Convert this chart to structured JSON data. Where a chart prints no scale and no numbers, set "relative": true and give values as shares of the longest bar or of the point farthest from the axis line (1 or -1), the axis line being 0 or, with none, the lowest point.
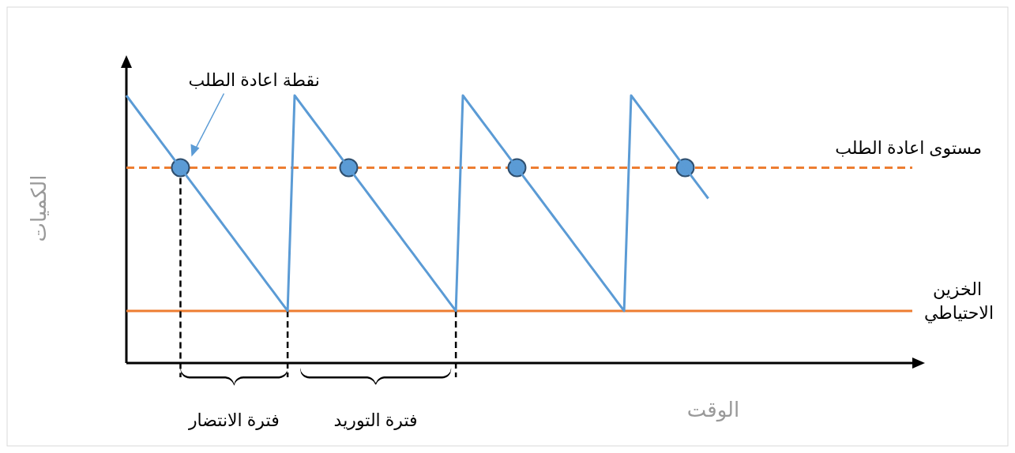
{
  "chart_data": {
    "type": "line",
    "relative": true,
    "xlabel": "الوقت",
    "ylabel": "الكميات",
    "marker": "none",
    "categories": [
      null,
      null,
      null,
      null,
      null,
      null,
      null,
      null,
      null,
      null,
      null,
      null,
      null,
      null,
      null,
      null,
      null,
      null,
      null,
      null,
      null,
      null,
      null,
      null,
      null,
      null,
      null,
      null,
      null,
      null,
      null,
      null,
      null,
      null,
      null,
      null,
      null,
      null,
      null,
      null,
      null,
      null,
      null,
      null,
      null,
      null,
      null,
      null,
      null,
      null,
      null,
      null,
      null,
      null,
      null,
      null,
      null,
      null,
      null,
      null,
      null,
      null,
      null,
      null,
      null,
      null,
      null,
      null,
      null,
      null,
      null,
      null,
      null,
      null,
      null,
      null,
      null,
      null,
      null,
      null,
      null,
      null,
      null,
      null
    ],
    "series": [
      {
        "color": "#5b9bd5",
        "values": [
          1,
          0.965,
          0.93,
          0.895,
          0.86,
          0.825,
          0.79,
          0.755,
          0.72,
          0.685,
          0.65,
          0.615,
          0.58,
          0.545,
          0.51,
          0.475,
          0.44,
          0.405,
          0.37,
          0.335,
          0.3,
          0.265,
          0.23,
          0.195,
          1,
          0.965,
          0.93,
          0.895,
          0.86,
          0.825,
          0.79,
          0.755,
          0.72,
          0.685,
          0.65,
          0.615,
          0.58,
          0.545,
          0.51,
          0.475,
          0.44,
          0.405,
          0.37,
          0.335,
          0.3,
          0.265,
          0.23,
          0.195,
          1,
          0.965,
          0.93,
          0.895,
          0.86,
          0.825,
          0.79,
          0.755,
          0.72,
          0.685,
          0.65,
          0.615,
          0.58,
          0.545,
          0.51,
          0.475,
          0.44,
          0.405,
          0.37,
          0.335,
          0.3,
          0.265,
          0.23,
          0.195,
          1,
          0.965,
          0.93,
          0.895,
          0.86,
          0.825,
          0.79,
          0.755,
          0.72,
          0.685,
          0.65,
          0.615
        ]
      }
    ],
    "ref_lines": [
      {
        "axis": "y",
        "value": 0.73,
        "label": "مستوى اعادة الطلب",
        "color": "#ed7d31",
        "line_style": "dashed"
      },
      {
        "axis": "y",
        "value": 0.195,
        "label": "الخزين الاحتياطي",
        "color": "#ed7d31",
        "line_style": "solid"
      }
    ],
    "annotations": [
      "نقطة اعادة الطلب",
      "فترة الانتضار",
      "فترة التوريد"
    ]
  }
}
